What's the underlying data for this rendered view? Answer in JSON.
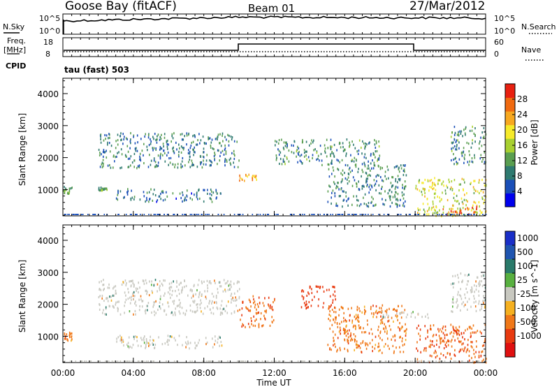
{
  "header": {
    "site": "Goose Bay (fitACF)",
    "beam": "Beam 01",
    "date": "27/Mar/2012"
  },
  "noise_panel": {
    "left_label": "N.Sky",
    "right_label": "N.Search",
    "left_ticks": [
      "10^5",
      "10^0"
    ],
    "right_ticks": [
      "10^5",
      "10^0"
    ]
  },
  "freq_panel": {
    "left_label_line1": "Freq.",
    "left_label_line2": "[MHz]",
    "left_ticks": [
      "18",
      "8"
    ],
    "right_label": "Nave",
    "right_ticks": [
      "60",
      "0"
    ],
    "cpid_label": "CPID",
    "program": "tau (fast) 503"
  },
  "colors": {
    "power_scale": [
      "#0000ee",
      "#1a4fb8",
      "#2f7a70",
      "#5a9e50",
      "#a8d030",
      "#f6ea2a",
      "#f7a820",
      "#f06a10",
      "#e82010"
    ],
    "velocity_scale": [
      "#1a2fc8",
      "#1f55b0",
      "#2a7a6a",
      "#58b040",
      "#c8c8c0",
      "#f5b020",
      "#f07818",
      "#e83a10",
      "#e01010"
    ],
    "ground_scatter": "#c8c8c0"
  },
  "chart_data": [
    {
      "type": "heatmap",
      "name": "power",
      "ylabel": "Slant Range [km]",
      "yticks": [
        1000,
        2000,
        3000,
        4000
      ],
      "ylim": [
        180,
        4480
      ],
      "xlim": [
        "00:00",
        "24:00"
      ],
      "colorbar": {
        "label": "Power [dB]",
        "ticks": [
          "4",
          "8",
          "12",
          "16",
          "20",
          "24",
          "28"
        ],
        "range": [
          0,
          32
        ]
      },
      "scatter_regions": [
        {
          "time": [
            "00:00",
            "00:30"
          ],
          "range": [
            900,
            1150
          ],
          "value_db": 14
        },
        {
          "time": [
            "02:00",
            "02:30"
          ],
          "range": [
            1000,
            1100
          ],
          "value_db": 10
        },
        {
          "time": [
            "02:00",
            "10:00"
          ],
          "range": [
            1700,
            2800
          ],
          "value_db": 9
        },
        {
          "time": [
            "03:00",
            "09:00"
          ],
          "range": [
            650,
            1050
          ],
          "value_db": 8
        },
        {
          "time": [
            "10:00",
            "11:00"
          ],
          "range": [
            1300,
            1500
          ],
          "value_db": 24
        },
        {
          "time": [
            "12:00",
            "18:00"
          ],
          "range": [
            1800,
            2600
          ],
          "value_db": 10
        },
        {
          "time": [
            "15:00",
            "19:30"
          ],
          "range": [
            500,
            1800
          ],
          "value_db": 9
        },
        {
          "time": [
            "20:00",
            "24:00"
          ],
          "range": [
            200,
            1400
          ],
          "value_db": 18
        },
        {
          "time": [
            "21:30",
            "23:30"
          ],
          "range": [
            230,
            500
          ],
          "value_db": 28
        },
        {
          "time": [
            "22:00",
            "24:00"
          ],
          "range": [
            1800,
            3000
          ],
          "value_db": 10
        }
      ]
    },
    {
      "type": "heatmap",
      "name": "velocity",
      "ylabel": "Slant Range [km]",
      "yticks": [
        1000,
        2000,
        3000,
        4000
      ],
      "ylim": [
        180,
        4480
      ],
      "xlabel": "Time UT",
      "xticks": [
        "00:00",
        "04:00",
        "08:00",
        "12:00",
        "16:00",
        "20:00",
        "00:00"
      ],
      "xlim": [
        "00:00",
        "24:00"
      ],
      "colorbar": {
        "label": "Velocity [m s^-1]",
        "ticks": [
          "1000",
          "500",
          "100",
          "25",
          "-25",
          "-100",
          "-500",
          "-1000"
        ],
        "range": [
          -1000,
          1000
        ]
      },
      "scatter_regions": [
        {
          "time": [
            "00:00",
            "00:30"
          ],
          "range": [
            900,
            1150
          ],
          "value_ms": -300
        },
        {
          "time": [
            "02:00",
            "10:00"
          ],
          "range": [
            1700,
            2800
          ],
          "value_ms": 0,
          "ground_scatter": true
        },
        {
          "time": [
            "03:00",
            "09:00"
          ],
          "range": [
            650,
            1050
          ],
          "value_ms": 0,
          "ground_scatter": true
        },
        {
          "time": [
            "10:00",
            "12:00"
          ],
          "range": [
            1300,
            2300
          ],
          "value_ms": -400
        },
        {
          "time": [
            "13:30",
            "15:30"
          ],
          "range": [
            1900,
            2600
          ],
          "value_ms": -800
        },
        {
          "time": [
            "15:00",
            "19:30"
          ],
          "range": [
            500,
            2000
          ],
          "value_ms": -300
        },
        {
          "time": [
            "18:00",
            "21:00"
          ],
          "range": [
            1600,
            1800
          ],
          "value_ms": 0,
          "ground_scatter": true
        },
        {
          "time": [
            "20:00",
            "24:00"
          ],
          "range": [
            200,
            1400
          ],
          "value_ms": -500
        },
        {
          "time": [
            "22:00",
            "24:00"
          ],
          "range": [
            1800,
            3000
          ],
          "value_ms": 0,
          "ground_scatter": true
        }
      ]
    }
  ]
}
